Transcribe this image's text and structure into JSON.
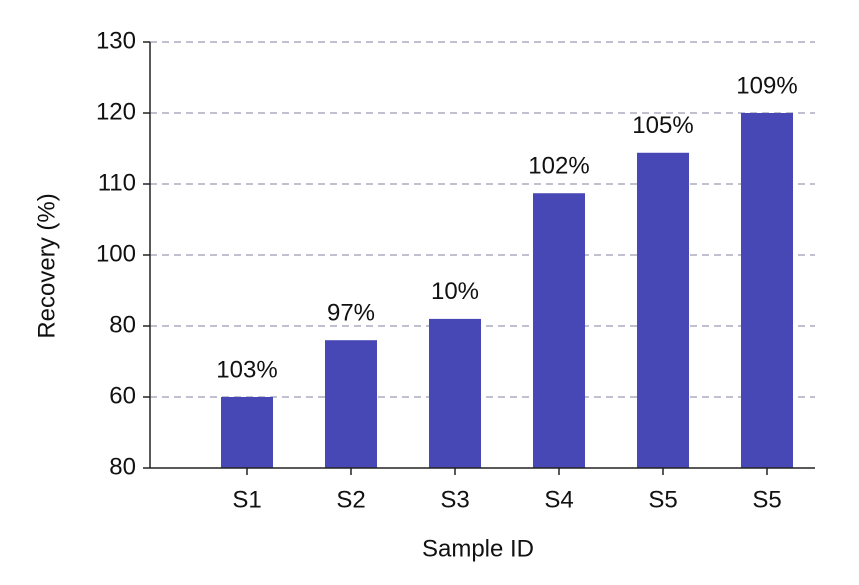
{
  "chart_data": {
    "type": "bar",
    "xlabel": "Sample ID",
    "ylabel": "Recovery (%)",
    "categories": [
      "S1",
      "S2",
      "S3",
      "S4",
      "S5",
      "S5"
    ],
    "values": [
      80,
      88,
      91,
      108.7,
      114.4,
      120
    ],
    "annotations": [
      "103%",
      "97%",
      "10%",
      "102%",
      "105%",
      "109%"
    ],
    "color": "#4747b5",
    "ylim": [
      70,
      130
    ],
    "yticks": [
      {
        "value": 70,
        "label": "80"
      },
      {
        "value": 80,
        "label": "60"
      },
      {
        "value": 90,
        "label": "80"
      },
      100,
      110,
      120,
      130
    ],
    "grid": true
  }
}
